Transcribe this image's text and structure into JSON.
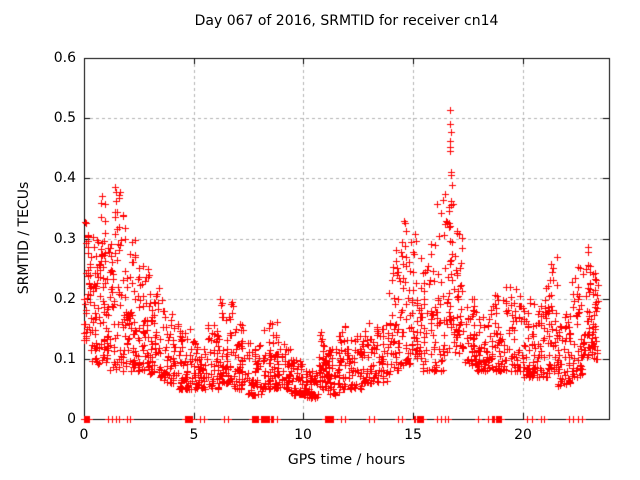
{
  "chart_data": {
    "type": "scatter",
    "title": "Day 067 of 2016, SRMTID for receiver cn14",
    "xlabel": "GPS time / hours",
    "ylabel": "SRMTID / TECUs",
    "xlim": [
      0,
      23.92
    ],
    "ylim": [
      0,
      0.6
    ],
    "xticks": [
      0,
      5,
      10,
      15,
      20
    ],
    "xtick_labels": [
      "0",
      "5",
      "10",
      "15",
      "20"
    ],
    "yticks": [
      0,
      0.1,
      0.2,
      0.3,
      0.4,
      0.5,
      0.6
    ],
    "ytick_labels": [
      "0",
      "0.1",
      "0.2",
      "0.3",
      "0.4",
      "0.5",
      "0.6"
    ],
    "grid": {
      "show": true,
      "style": "dashed",
      "color": "#b3b3b3"
    },
    "marker": {
      "shape": "plus",
      "color": "#ff0000",
      "size": 7
    },
    "legend": "none",
    "axis_color": "#000000",
    "background": "#ffffff",
    "seed": 7,
    "envelope_bins": [
      [
        0.0,
        0.3,
        0.13,
        0.33,
        40
      ],
      [
        0.3,
        0.7,
        0.09,
        0.31,
        45
      ],
      [
        0.7,
        1.0,
        0.09,
        0.37,
        40
      ],
      [
        1.0,
        1.4,
        0.08,
        0.31,
        45
      ],
      [
        1.4,
        1.9,
        0.08,
        0.4,
        55
      ],
      [
        1.9,
        2.4,
        0.08,
        0.3,
        50
      ],
      [
        2.4,
        3.0,
        0.08,
        0.26,
        55
      ],
      [
        3.0,
        3.6,
        0.07,
        0.22,
        55
      ],
      [
        3.6,
        4.3,
        0.06,
        0.18,
        55
      ],
      [
        4.3,
        5.0,
        0.05,
        0.15,
        60
      ],
      [
        5.0,
        5.6,
        0.05,
        0.13,
        50
      ],
      [
        5.6,
        6.2,
        0.05,
        0.16,
        50
      ],
      [
        6.2,
        6.8,
        0.06,
        0.21,
        55
      ],
      [
        6.8,
        7.4,
        0.05,
        0.16,
        50
      ],
      [
        7.4,
        8.1,
        0.04,
        0.13,
        55
      ],
      [
        8.1,
        8.8,
        0.05,
        0.17,
        55
      ],
      [
        8.8,
        9.4,
        0.05,
        0.13,
        50
      ],
      [
        9.4,
        10.0,
        0.04,
        0.1,
        50
      ],
      [
        10.0,
        10.7,
        0.035,
        0.08,
        55
      ],
      [
        10.7,
        11.1,
        0.05,
        0.145,
        40
      ],
      [
        11.1,
        11.6,
        0.04,
        0.12,
        40
      ],
      [
        11.6,
        12.1,
        0.05,
        0.16,
        40
      ],
      [
        12.1,
        12.7,
        0.05,
        0.14,
        45
      ],
      [
        12.7,
        13.3,
        0.06,
        0.16,
        45
      ],
      [
        13.3,
        13.9,
        0.06,
        0.17,
        45
      ],
      [
        13.9,
        14.4,
        0.08,
        0.3,
        45
      ],
      [
        14.4,
        14.9,
        0.09,
        0.33,
        45
      ],
      [
        14.9,
        15.4,
        0.1,
        0.31,
        45
      ],
      [
        15.4,
        15.9,
        0.08,
        0.3,
        35
      ],
      [
        15.9,
        16.4,
        0.08,
        0.37,
        40
      ],
      [
        16.4,
        16.9,
        0.11,
        0.4,
        50
      ],
      [
        16.9,
        17.3,
        0.11,
        0.33,
        40
      ],
      [
        17.3,
        17.9,
        0.09,
        0.2,
        45
      ],
      [
        17.9,
        18.5,
        0.08,
        0.17,
        50
      ],
      [
        18.5,
        19.2,
        0.08,
        0.21,
        55
      ],
      [
        19.2,
        19.9,
        0.08,
        0.22,
        55
      ],
      [
        19.9,
        20.6,
        0.07,
        0.2,
        55
      ],
      [
        20.6,
        21.2,
        0.07,
        0.23,
        50
      ],
      [
        21.2,
        21.6,
        0.08,
        0.27,
        40
      ],
      [
        21.6,
        22.2,
        0.055,
        0.18,
        50
      ],
      [
        22.2,
        22.7,
        0.07,
        0.26,
        45
      ],
      [
        22.7,
        23.1,
        0.1,
        0.29,
        40
      ],
      [
        23.1,
        23.45,
        0.1,
        0.25,
        35
      ]
    ],
    "outliers": [
      [
        16.68,
        0.513
      ],
      [
        16.66,
        0.49
      ],
      [
        16.7,
        0.477
      ],
      [
        16.68,
        0.462
      ],
      [
        16.66,
        0.452
      ],
      [
        16.69,
        0.446
      ],
      [
        16.72,
        0.41
      ],
      [
        16.7,
        0.405
      ]
    ],
    "zero_point_clusters": [
      [
        0.0,
        0.25,
        10
      ],
      [
        4.6,
        4.9,
        8
      ],
      [
        7.65,
        7.95,
        8
      ],
      [
        8.05,
        8.6,
        12
      ],
      [
        11.0,
        11.35,
        9
      ],
      [
        15.05,
        15.45,
        9
      ],
      [
        18.65,
        19.0,
        8
      ]
    ],
    "zero_points": [
      1.1,
      1.27,
      1.46,
      1.6,
      1.95,
      2.1,
      5.3,
      5.45,
      6.4,
      6.55,
      8.6,
      8.8,
      11.7,
      11.9,
      13.0,
      13.2,
      14.3,
      14.5,
      16.1,
      16.25,
      16.45,
      16.6,
      17.95,
      18.4,
      18.6,
      20.2,
      20.4,
      20.8,
      20.95,
      22.1,
      22.3,
      22.5,
      22.7
    ]
  }
}
